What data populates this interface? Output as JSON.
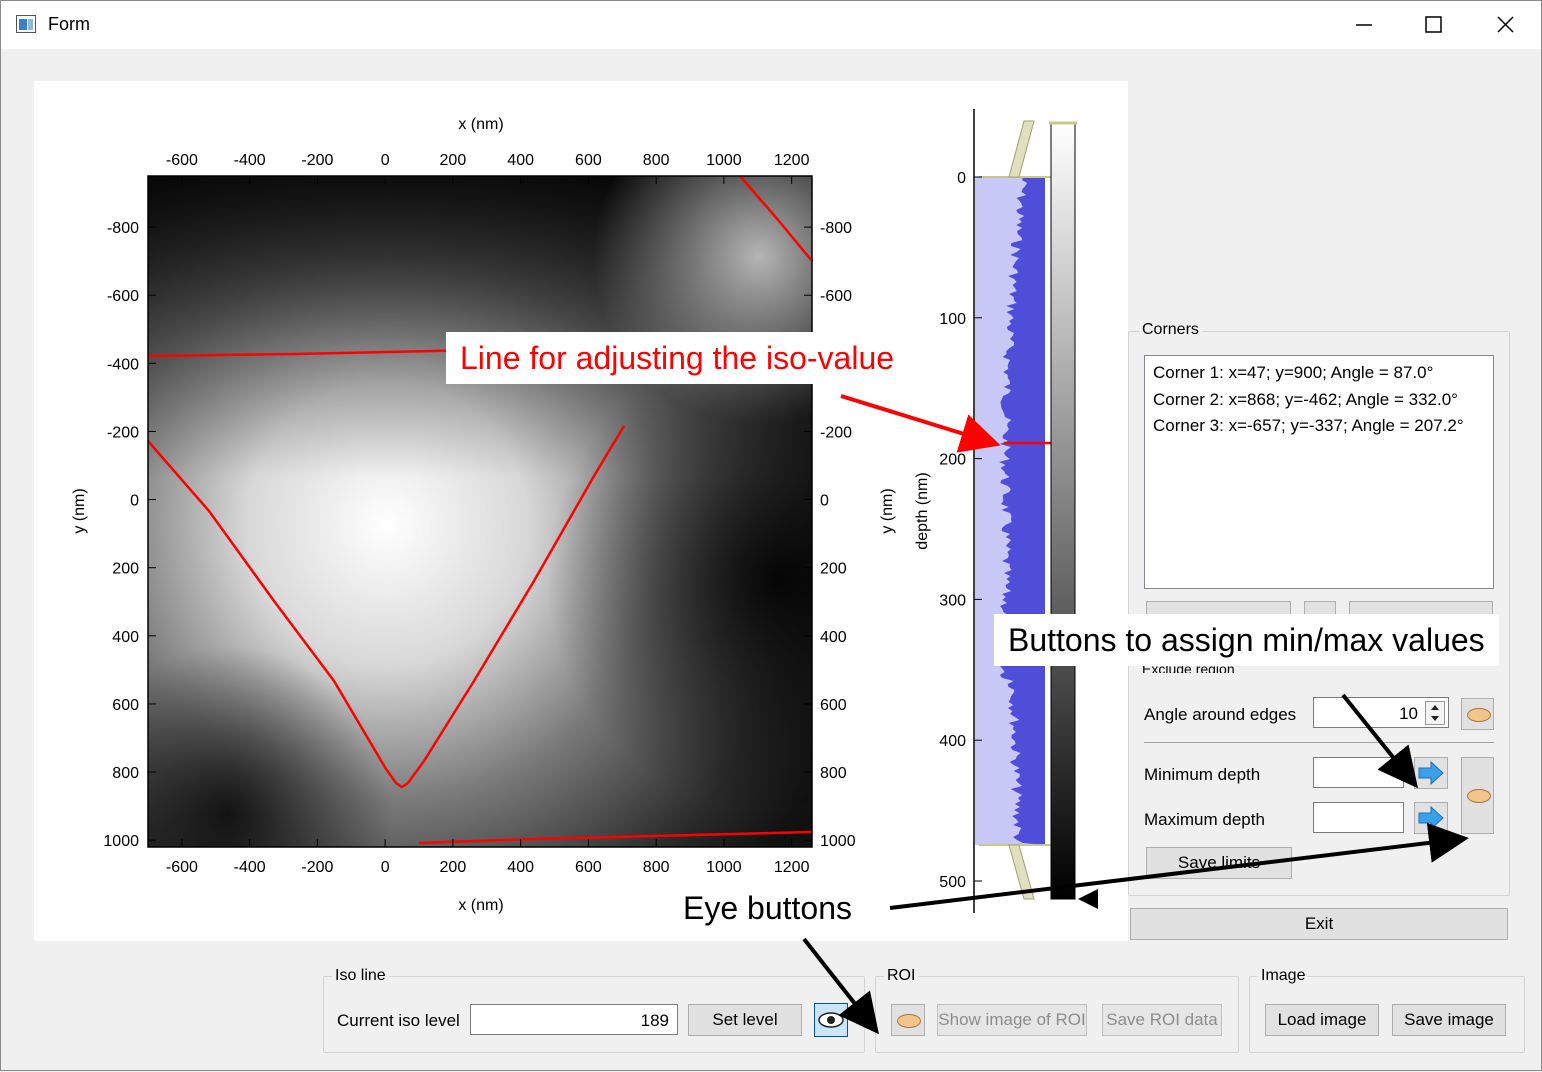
{
  "window": {
    "title": "Form"
  },
  "plot": {
    "x_label": "x (nm)",
    "y_label": "y (nm)",
    "x_ticks": [
      "-600",
      "-400",
      "-200",
      "0",
      "200",
      "400",
      "600",
      "800",
      "1000",
      "1200"
    ],
    "y_ticks": [
      "-800",
      "-600",
      "-400",
      "-200",
      "0",
      "200",
      "400",
      "600",
      "800",
      "1000"
    ],
    "depth_label": "depth (nm)",
    "depth_ticks": [
      "0",
      "100",
      "200",
      "300",
      "400",
      "500"
    ],
    "iso_line_color": "#ff0000",
    "histogram_fill": "#4e4ed8",
    "histogram_bg": "#c8c8f7"
  },
  "corners": {
    "title": "Corners",
    "items": [
      "Corner 1: x=47; y=900; Angle = 87.0°",
      "Corner 2: x=868; y=-462; Angle = 332.0°",
      "Corner 3: x=-657; y=-337; Angle = 207.2°"
    ]
  },
  "exclude": {
    "title": "Exclude region",
    "angle_label": "Angle around edges",
    "angle_value": "10",
    "min_label": "Minimum depth",
    "min_value": "",
    "max_label": "Maximum depth",
    "max_value": "",
    "save_limits": "Save limits"
  },
  "exit_label": "Exit",
  "iso": {
    "title": "Iso line",
    "current_label": "Current iso level",
    "current_value": "189",
    "set_level": "Set level"
  },
  "roi": {
    "title": "ROI",
    "show_image": "Show image of ROI",
    "save_data": "Save ROI data"
  },
  "image": {
    "title": "Image",
    "load": "Load image",
    "save": "Save image"
  },
  "annotations": {
    "iso_line": "Line for adjusting the iso-value",
    "minmax": "Buttons to assign min/max values",
    "eye": "Eye buttons"
  }
}
